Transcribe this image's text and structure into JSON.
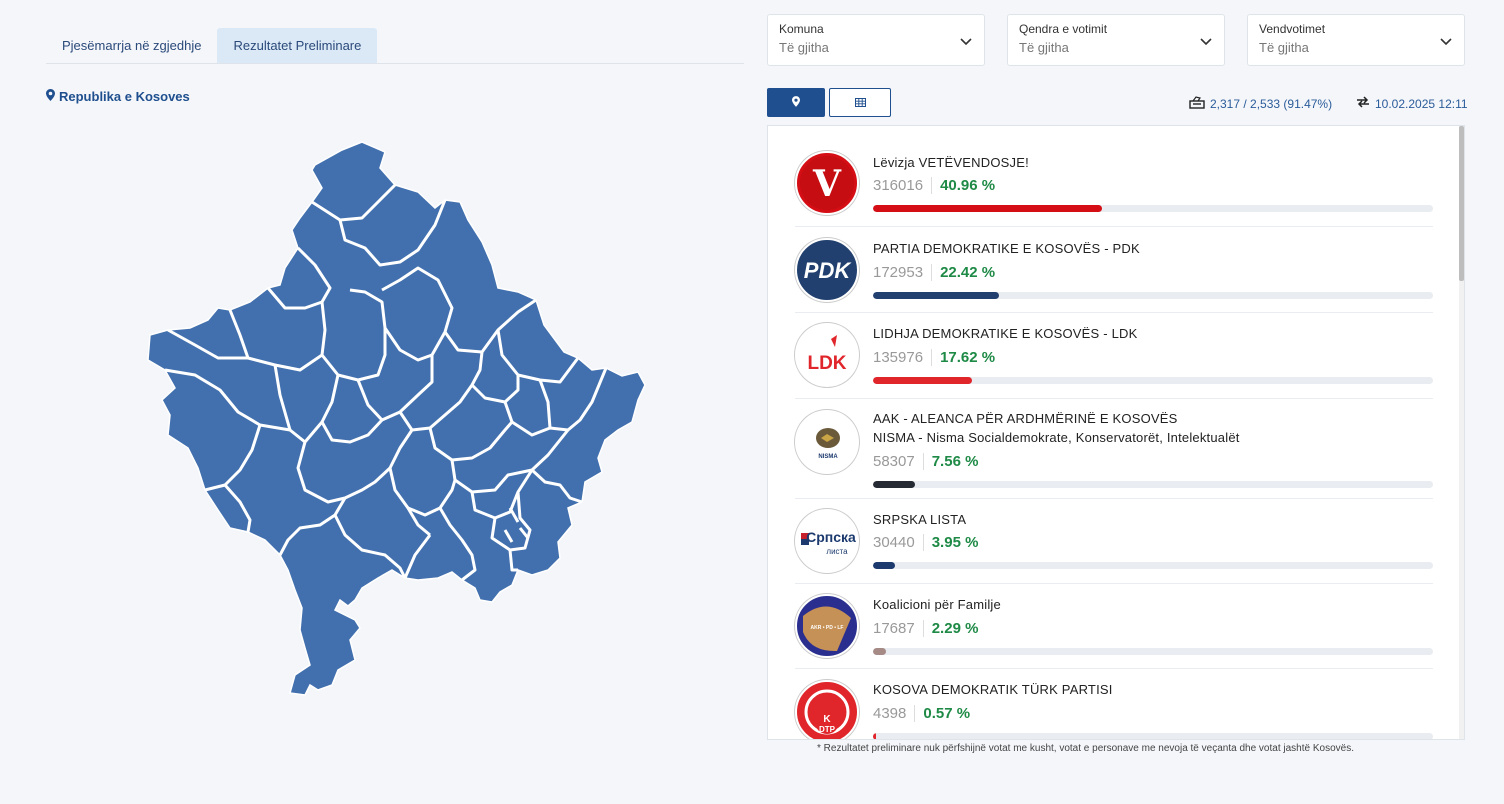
{
  "tabs": [
    {
      "label": "Pjesëmarrja në zgjedhje",
      "active": false
    },
    {
      "label": "Rezultatet Preliminare",
      "active": true
    }
  ],
  "region_title": "Republika e Kosoves",
  "filters": [
    {
      "label": "Komuna",
      "value": "Të gjitha"
    },
    {
      "label": "Qendra e votimit",
      "value": "Të gjitha"
    },
    {
      "label": "Vendvotimet",
      "value": "Të gjitha"
    }
  ],
  "stats": {
    "stations": "2,317 / 2,533 (91.47%)",
    "updated": "10.02.2025 12:11"
  },
  "colors": {
    "map_fill": "#4270ae",
    "primary": "#1f4f8e",
    "percent": "#1e8a46"
  },
  "parties": [
    {
      "name": "Lëvizja VETËVENDOSJE!",
      "votes": "316016",
      "percent": "40.96 %",
      "share": 40.96,
      "color": "#d40e14",
      "logo_text": "V"
    },
    {
      "name": "PARTIA DEMOKRATIKE E KOSOVËS - PDK",
      "votes": "172953",
      "percent": "22.42 %",
      "share": 22.42,
      "color": "#22406f",
      "logo_text": "PDK"
    },
    {
      "name": "LIDHJA DEMOKRATIKE E KOSOVËS - LDK",
      "votes": "135976",
      "percent": "17.62 %",
      "share": 17.62,
      "color": "#e0262b",
      "logo_text": "LDK"
    },
    {
      "name": "AAK - ALEANCA PËR ARDHMËRINË E KOSOVËS",
      "name2": "NISMA - Nisma Socialdemokrate, Konservatorët, Intelektualët",
      "votes": "58307",
      "percent": "7.56 %",
      "share": 7.56,
      "color": "#262a33",
      "logo_text": "NISMA"
    },
    {
      "name": "SRPSKA LISTA",
      "votes": "30440",
      "percent": "3.95 %",
      "share": 3.95,
      "color": "#1c3a6e",
      "logo_text": "Српска",
      "logo_text2": "листа"
    },
    {
      "name": "Koalicioni për Familje",
      "votes": "17687",
      "percent": "2.29 %",
      "share": 2.29,
      "color": "#a58a86",
      "logo_text": "AKR • PD • LF"
    },
    {
      "name": "KOSOVA DEMOKRATIK TÜRK PARTISI",
      "votes": "4398",
      "percent": "0.57 %",
      "share": 0.57,
      "color": "#e0262b",
      "logo_text": "K",
      "logo_text2": "DTP"
    }
  ],
  "footnote": "* Rezultatet preliminare nuk përfshijnë votat me kusht, votat e personave me nevoja të veçanta dhe votat jashtë Kosovës."
}
